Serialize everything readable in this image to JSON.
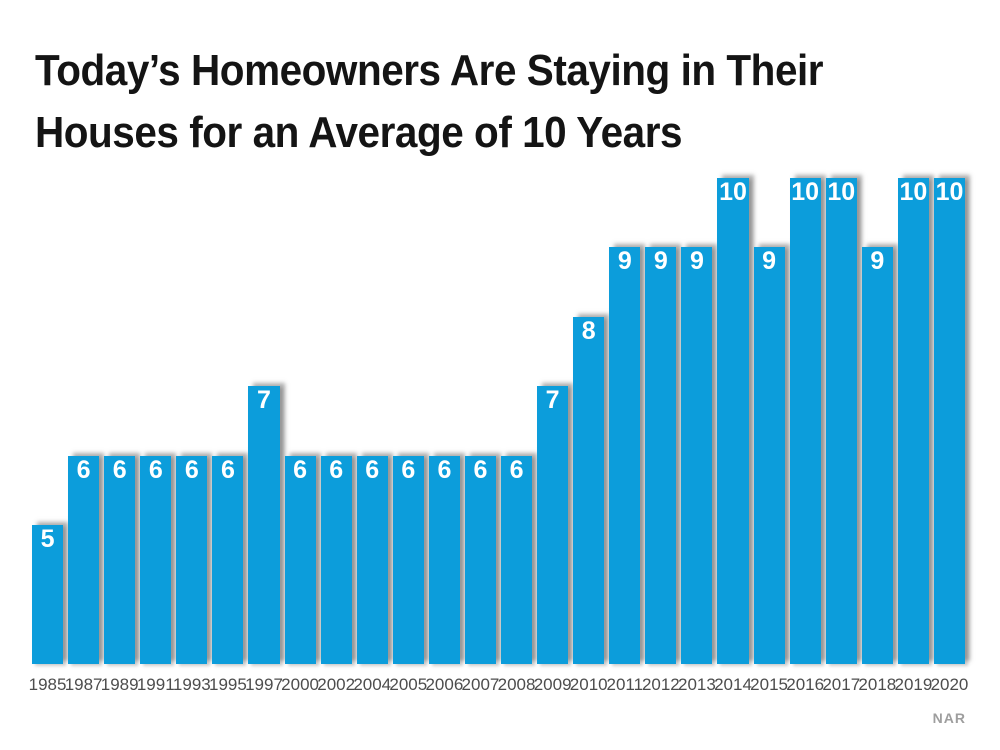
{
  "title": {
    "lines": [
      "Today’s Homeowners Are Staying in Their",
      "Houses for an Average of 10 Years"
    ]
  },
  "source": "NAR",
  "colors": {
    "bar": "#0C9DDB",
    "value_label": "#FFFFFF",
    "axis_label": "#4D4D4D",
    "title": "#141414",
    "source": "#9E9E9E"
  },
  "chart_data": {
    "type": "bar",
    "title": "Today’s Homeowners Are Staying in Their Houses for an Average of 10 Years",
    "categories": [
      "1985",
      "1987",
      "1989",
      "1991",
      "1993",
      "1995",
      "1997",
      "2000",
      "2002",
      "2004",
      "2005",
      "2006",
      "2007",
      "2008",
      "2009",
      "2010",
      "2011",
      "2012",
      "2013",
      "2014",
      "2015",
      "2016",
      "2017",
      "2018",
      "2019",
      "2020"
    ],
    "values": [
      5,
      6,
      6,
      6,
      6,
      6,
      7,
      6,
      6,
      6,
      6,
      6,
      6,
      6,
      7,
      8,
      9,
      9,
      9,
      10,
      9,
      10,
      10,
      9,
      10,
      10
    ],
    "xlabel": "",
    "ylabel": "",
    "axis_min": 3,
    "value_labels_shown": true,
    "legend": "none",
    "grid": false,
    "source": "NAR"
  }
}
